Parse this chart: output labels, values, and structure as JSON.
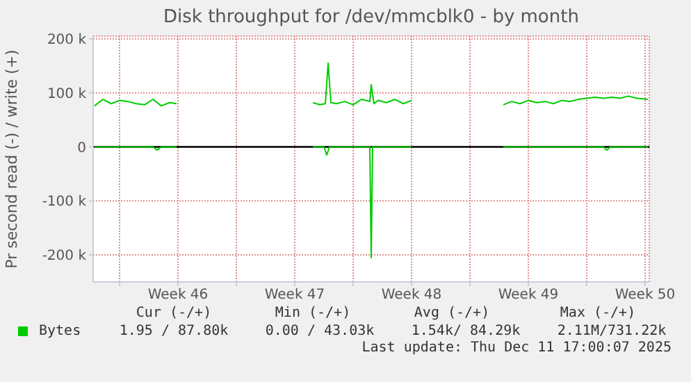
{
  "chart_data": {
    "type": "line",
    "title": "Disk throughput for /dev/mmcblk0 - by month",
    "ylabel": "Pr second read (-) / write (+)",
    "xlim": [
      "2025-11-08T10:00",
      "2025-12-11T18:00"
    ],
    "xticks": [
      {
        "value": "2025-11-10",
        "label": null
      },
      {
        "value": "2025-11-13T12:00",
        "label": "Week 46"
      },
      {
        "value": "2025-11-17",
        "label": null
      },
      {
        "value": "2025-11-20T12:00",
        "label": "Week 47"
      },
      {
        "value": "2025-11-24",
        "label": null
      },
      {
        "value": "2025-11-27T12:00",
        "label": "Week 48"
      },
      {
        "value": "2025-12-01",
        "label": null
      },
      {
        "value": "2025-12-04T12:00",
        "label": "Week 49"
      },
      {
        "value": "2025-12-08",
        "label": null
      },
      {
        "value": "2025-12-11T12:00",
        "label": "Week 50"
      }
    ],
    "ylim": [
      -250000,
      205000
    ],
    "yticks": [
      {
        "value": -200000,
        "label": "-200 k"
      },
      {
        "value": -100000,
        "label": "-100 k"
      },
      {
        "value": 0,
        "label": "0"
      },
      {
        "value": 100000,
        "label": "100 k"
      },
      {
        "value": 200000,
        "label": "200 k"
      }
    ],
    "grid": true,
    "legend": "bottom",
    "marker": "none",
    "line_style": "solid",
    "ref_lines": [
      {
        "axis": "y",
        "value": 0,
        "label": null,
        "color": "#000000"
      }
    ],
    "series": [
      {
        "name": "Bytes",
        "color": "#00cc00",
        "x": [
          "2025-11-08T12:00",
          "2025-11-09T00:00",
          "2025-11-09T12:00",
          "2025-11-10T00:00",
          "2025-11-10T12:00",
          "2025-11-11T00:00",
          "2025-11-11T12:00",
          "2025-11-12T00:00",
          "2025-11-12T12:00",
          "2025-11-13T00:00",
          "2025-11-13T10:00",
          "2025-11-14T00:00",
          "2025-11-21T14:00",
          "2025-11-22T00:00",
          "2025-11-22T08:00",
          "2025-11-22T12:00",
          "2025-11-22T16:00",
          "2025-11-23T00:00",
          "2025-11-23T12:00",
          "2025-11-24T00:00",
          "2025-11-24T12:00",
          "2025-11-25T00:00",
          "2025-11-25T02:00",
          "2025-11-25T06:00",
          "2025-11-25T12:00",
          "2025-11-26T00:00",
          "2025-11-26T12:00",
          "2025-11-27T00:00",
          "2025-11-27T12:00",
          "2025-11-28T00:00",
          "2025-12-03T00:00",
          "2025-12-03T12:00",
          "2025-12-04T00:00",
          "2025-12-04T12:00",
          "2025-12-05T00:00",
          "2025-12-05T12:00",
          "2025-12-06T00:00",
          "2025-12-06T12:00",
          "2025-12-07T00:00",
          "2025-12-07T12:00",
          "2025-12-08T00:00",
          "2025-12-08T12:00",
          "2025-12-09T00:00",
          "2025-12-09T12:00",
          "2025-12-10T00:00",
          "2025-12-10T12:00",
          "2025-12-11T00:00",
          "2025-12-11T16:00"
        ],
        "values": [
          76000,
          88000,
          80000,
          86000,
          84000,
          80000,
          78000,
          88000,
          76000,
          82000,
          80000,
          null,
          82000,
          78000,
          80000,
          155000,
          82000,
          80000,
          84000,
          78000,
          88000,
          84000,
          115000,
          80000,
          86000,
          82000,
          88000,
          80000,
          86000,
          null,
          78000,
          84000,
          80000,
          86000,
          82000,
          84000,
          80000,
          86000,
          84000,
          88000,
          90000,
          92000,
          90000,
          92000,
          90000,
          94000,
          90000,
          88000
        ]
      },
      {
        "color": "#00cc00",
        "x": [
          "2025-11-08T12:00",
          "2025-11-12T00:00",
          "2025-11-12T06:00",
          "2025-11-12T12:00",
          "2025-11-13T10:00",
          "2025-11-14T00:00",
          "2025-11-21T14:00",
          "2025-11-22T06:00",
          "2025-11-22T10:00",
          "2025-11-22T14:00",
          "2025-11-25T00:00",
          "2025-11-25T02:00",
          "2025-11-25T04:00",
          "2025-11-27T12:00",
          "2025-11-28T00:00",
          "2025-12-03T00:00",
          "2025-12-09T00:00",
          "2025-12-09T05:00",
          "2025-12-09T10:00",
          "2025-12-11T16:00"
        ],
        "values": [
          0,
          0,
          -6000,
          0,
          0,
          null,
          0,
          0,
          -15000,
          0,
          0,
          -205000,
          0,
          0,
          null,
          0,
          0,
          -6000,
          0,
          0
        ]
      }
    ],
    "annotations": [
      "Cur (-/+)",
      "Min (-/+)",
      "Avg (-/+)",
      "Max (-/+)",
      "1.95 / 87.80k",
      "0.00 / 43.03k",
      "1.54k/ 84.29k",
      "2.11M/731.22k",
      "Last update: Thu Dec 11 17:00:07 2025"
    ]
  }
}
